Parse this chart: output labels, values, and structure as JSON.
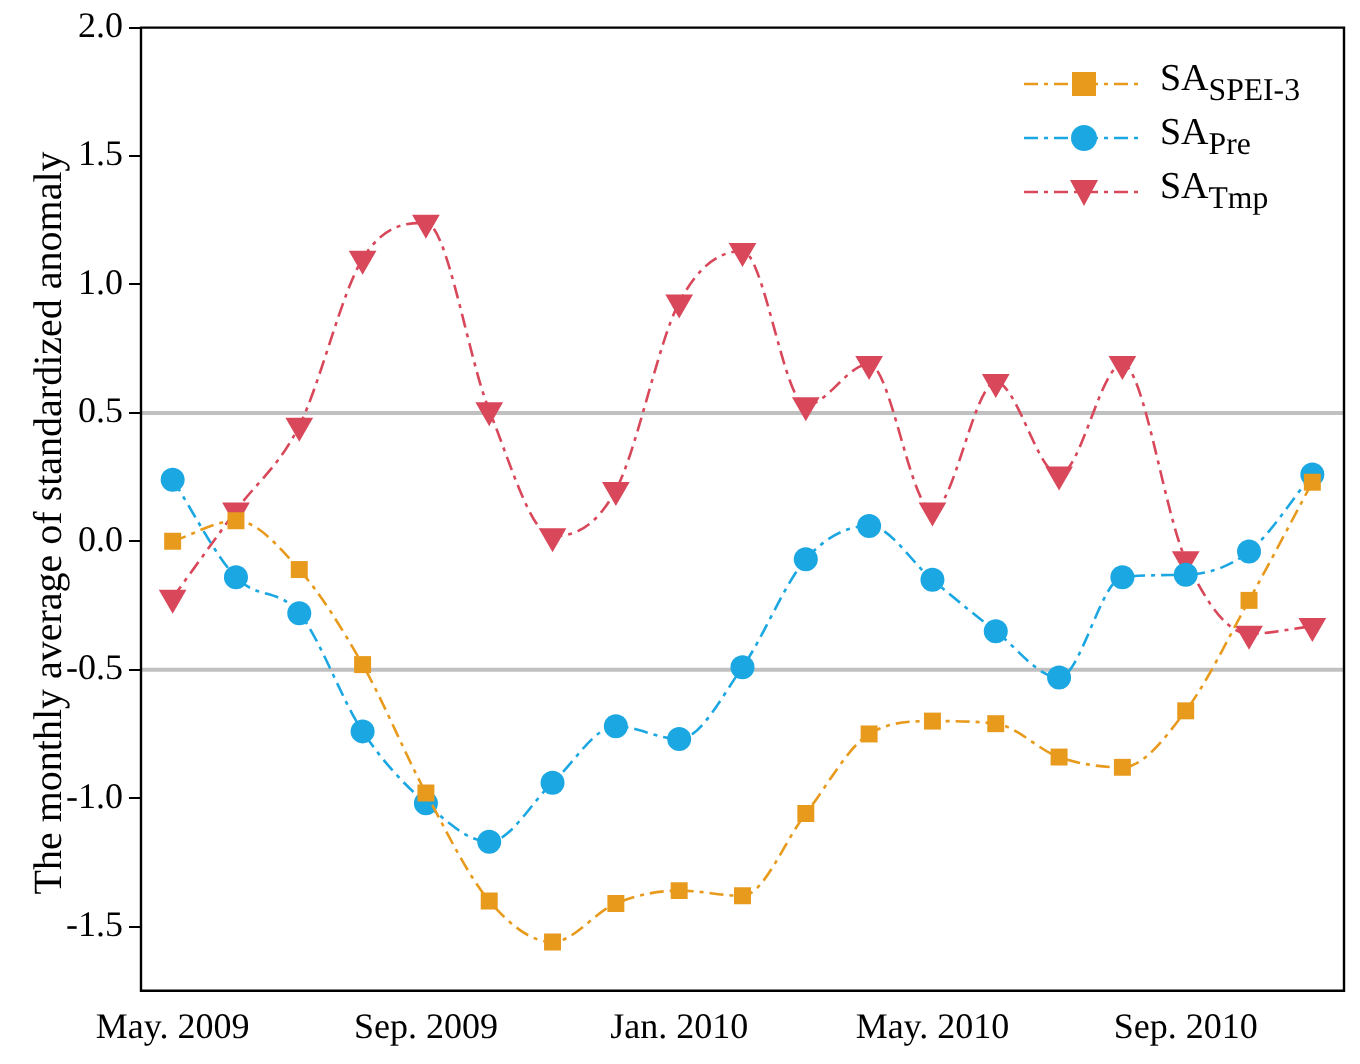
{
  "chart_data": {
    "type": "line",
    "ylabel": "The monthly average of standardized anomaly",
    "categories": [
      "May. 2009",
      null,
      null,
      null,
      "Sep. 2009",
      null,
      null,
      null,
      "Jan. 2010",
      null,
      null,
      null,
      "May. 2010",
      null,
      null,
      null,
      "Sep. 2010",
      null,
      null
    ],
    "series": [
      {
        "name": "SA$_{SPEI-3}$",
        "color": "#e89a1c",
        "marker": "square",
        "values": [
          0.0,
          0.08,
          -0.11,
          -0.48,
          -0.98,
          -1.4,
          -1.56,
          -1.41,
          -1.36,
          -1.38,
          -1.06,
          -0.75,
          -0.7,
          -0.71,
          -0.84,
          -0.88,
          -0.66,
          -0.23,
          0.23
        ]
      },
      {
        "name": "SA$_{Pre}$",
        "color": "#1ba7e2",
        "marker": "circle",
        "values": [
          0.24,
          -0.14,
          -0.28,
          -0.74,
          -1.02,
          -1.17,
          -0.94,
          -0.72,
          -0.77,
          -0.49,
          -0.07,
          0.06,
          -0.15,
          -0.35,
          -0.53,
          -0.14,
          -0.13,
          -0.04,
          0.26
        ]
      },
      {
        "name": "SA$_{Tmp}$",
        "color": "#d9475a",
        "marker": "triangle",
        "values": [
          -0.22,
          0.12,
          0.45,
          1.1,
          1.24,
          0.51,
          0.02,
          0.2,
          0.93,
          1.13,
          0.53,
          0.69,
          0.12,
          0.62,
          0.26,
          0.69,
          -0.07,
          -0.36,
          -0.33
        ]
      }
    ],
    "ylim": [
      -1.75,
      2.0
    ],
    "yticks": [
      {
        "value": -1.5,
        "label": "-1.5"
      },
      {
        "value": -1,
        "label": "-1.0"
      },
      {
        "value": -0.5,
        "label": "-0.5"
      },
      {
        "value": 0,
        "label": "0.0"
      },
      {
        "value": 0.5,
        "label": "0.5"
      },
      {
        "value": 1,
        "label": "1.0"
      },
      {
        "value": 1.5,
        "label": "1.5"
      },
      {
        "value": 2,
        "label": "2.0"
      }
    ],
    "ref_lines": [
      {
        "axis": "y",
        "value": 0.5,
        "color": "#c0c0c0"
      },
      {
        "axis": "y",
        "value": -0.5,
        "color": "#c0c0c0"
      }
    ],
    "grid": false,
    "legend": "top right",
    "line_style": "dashed"
  }
}
